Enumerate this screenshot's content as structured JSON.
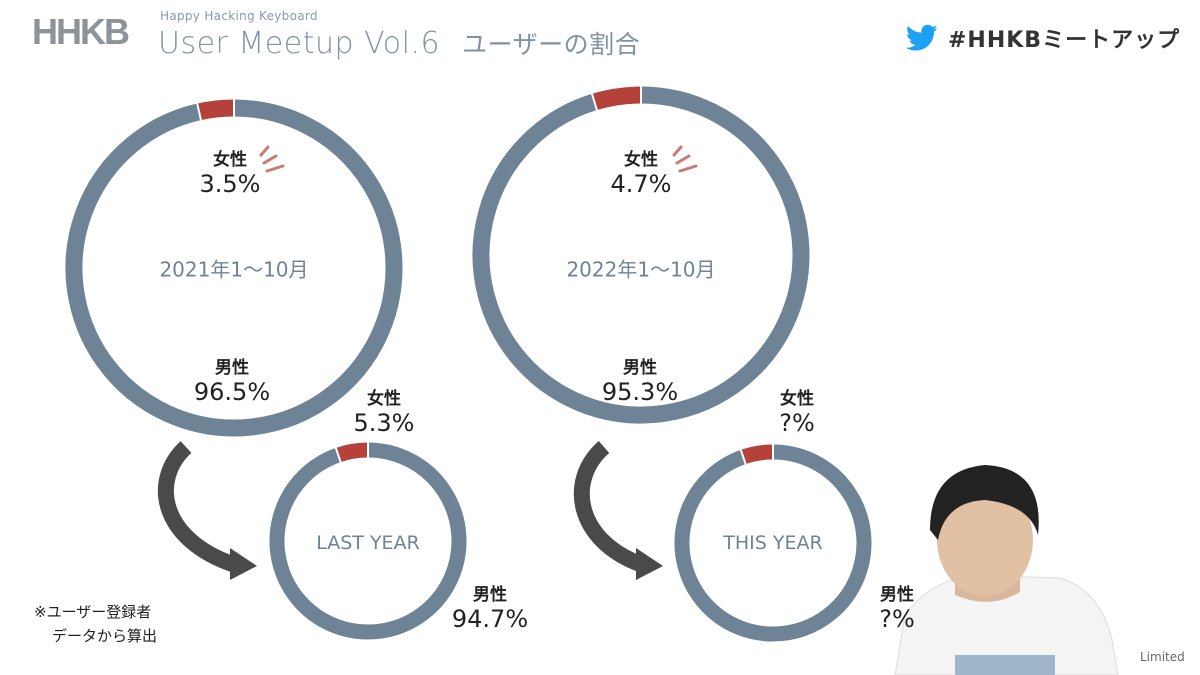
{
  "header": {
    "logo": "HHKB",
    "subtitle_small": "Happy Hacking Keyboard",
    "title": "User Meetup Vol.6",
    "title_sub": "ユーザーの割合",
    "hashtag": "#HHKBミートアップ"
  },
  "chart_data": [
    {
      "type": "pie",
      "title": "2021年1〜10月",
      "categories": [
        "女性",
        "男性"
      ],
      "values": [
        3.5,
        96.5
      ],
      "labels": [
        "3.5%",
        "96.5%"
      ],
      "colors": [
        "#b5413b",
        "#6e8396"
      ]
    },
    {
      "type": "pie",
      "title": "2022年1〜10月",
      "categories": [
        "女性",
        "男性"
      ],
      "values": [
        4.7,
        95.3
      ],
      "labels": [
        "4.7%",
        "95.3%"
      ],
      "colors": [
        "#b5413b",
        "#6e8396"
      ]
    },
    {
      "type": "pie",
      "title": "LAST YEAR",
      "categories": [
        "女性",
        "男性"
      ],
      "values": [
        5.3,
        94.7
      ],
      "labels": [
        "5.3%",
        "94.7%"
      ],
      "colors": [
        "#b5413b",
        "#6e8396"
      ]
    },
    {
      "type": "pie",
      "title": "THIS YEAR",
      "categories": [
        "女性",
        "男性"
      ],
      "values": [
        5.3,
        94.7
      ],
      "labels": [
        "?%",
        "?%"
      ],
      "colors": [
        "#b5413b",
        "#6e8396"
      ]
    }
  ],
  "note": {
    "line1": "※ユーザー登録者",
    "line2": "データから算出"
  },
  "watermark": "Limited",
  "colors": {
    "female": "#b5413b",
    "male": "#6e8396",
    "title": "#7f93a5",
    "arrow": "#4a4a4a",
    "twitter": "#1da1f2"
  }
}
